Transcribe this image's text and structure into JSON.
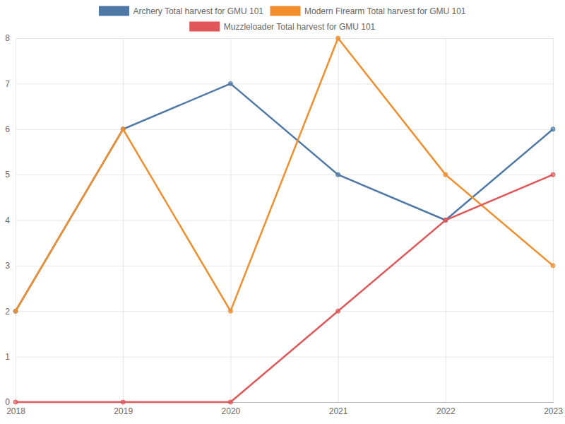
{
  "chart_data": {
    "type": "line",
    "categories": [
      "2018",
      "2019",
      "2020",
      "2021",
      "2022",
      "2023"
    ],
    "series": [
      {
        "name": "Archery Total harvest for GMU 101",
        "color": "#4e79a7",
        "values": [
          2,
          6,
          7,
          5,
          4,
          6
        ],
        "marker": "circle",
        "line_style": "solid"
      },
      {
        "name": "Modern Firearm Total harvest for GMU 101",
        "color": "#f28e2b",
        "values": [
          2,
          6,
          2,
          8,
          5,
          3
        ],
        "marker": "circle",
        "line_style": "solid"
      },
      {
        "name": "Muzzleloader Total harvest for GMU 101",
        "color": "#e15759",
        "values": [
          0,
          0,
          0,
          2,
          4,
          5
        ],
        "marker": "circle",
        "line_style": "solid"
      }
    ],
    "ylim": [
      0,
      8
    ],
    "yticks": [
      0,
      1,
      2,
      3,
      4,
      5,
      6,
      7,
      8
    ],
    "grid": true,
    "legend": "top"
  }
}
